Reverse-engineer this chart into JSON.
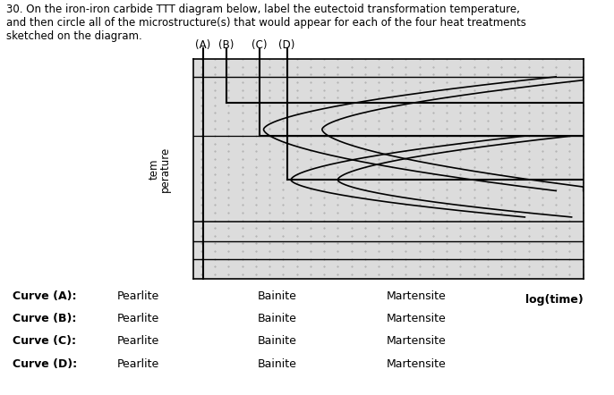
{
  "title_text": "30. On the iron-iron carbide TTT diagram below, label the eutectoid transformation temperature,\nand then circle all of the microstructure(s) that would appear for each of the four heat treatments\nsketched on the diagram.",
  "curve_labels": [
    "(A)",
    "(B)",
    "(C)",
    "(D)"
  ],
  "ylabel": "tem\nperature",
  "xlabel": "log(time)",
  "table": {
    "rows": [
      "Curve (A):",
      "Curve (B):",
      "Curve (C):",
      "Curve (D):"
    ],
    "col1": [
      "Pearlite",
      "Pearlite",
      "Pearlite",
      "Pearlite"
    ],
    "col2": [
      "Bainite",
      "Bainite",
      "Bainite",
      "Bainite"
    ],
    "col3": [
      "Martensite",
      "Martensite",
      "Martensite",
      "Martensite"
    ]
  },
  "bg_color": "#ffffff",
  "diagram_bg": "#dcdcdc"
}
